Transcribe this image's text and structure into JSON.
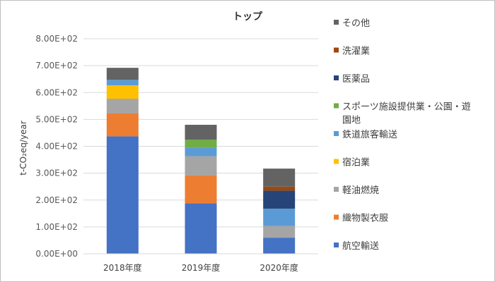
{
  "chart_data": {
    "type": "bar",
    "stacked": true,
    "title": "トップ",
    "ylabel": "t-CO₂eq/year",
    "xlabel": "",
    "ylim": [
      0,
      800
    ],
    "ytick_values": [
      0,
      100,
      200,
      300,
      400,
      500,
      600,
      700,
      800
    ],
    "ytick_labels": [
      "0.00E+00",
      "1.00E+02",
      "2.00E+02",
      "3.00E+02",
      "4.00E+02",
      "5.00E+02",
      "6.00E+02",
      "7.00E+02",
      "8.00E+02"
    ],
    "categories": [
      "2018年度",
      "2019年度",
      "2020年度"
    ],
    "grid": true,
    "legend_position": "right",
    "series": [
      {
        "name": "航空輸送",
        "color": "#4472C4",
        "values": [
          437,
          188,
          60
        ]
      },
      {
        "name": "織物製衣服",
        "color": "#ED7D31",
        "values": [
          85,
          103,
          0
        ]
      },
      {
        "name": "軽油燃焼",
        "color": "#A5A5A5",
        "values": [
          55,
          72,
          43
        ]
      },
      {
        "name": "宿泊業",
        "color": "#FFC000",
        "values": [
          50,
          0,
          0
        ]
      },
      {
        "name": "鉄道旅客輸送",
        "color": "#5B9BD5",
        "values": [
          20,
          32,
          65
        ]
      },
      {
        "name": "スポーツ施設提供業・公園・遊園地",
        "legend_lines": [
          "スポーツ施設提供業・公園・遊",
          "園地"
        ],
        "color": "#70AD47",
        "values": [
          0,
          30,
          0
        ]
      },
      {
        "name": "医薬品",
        "color": "#264478",
        "values": [
          0,
          0,
          67
        ]
      },
      {
        "name": "洗濯業",
        "color": "#9E480E",
        "values": [
          0,
          0,
          15
        ]
      },
      {
        "name": "その他",
        "color": "#636363",
        "values": [
          45,
          55,
          67
        ]
      }
    ]
  }
}
